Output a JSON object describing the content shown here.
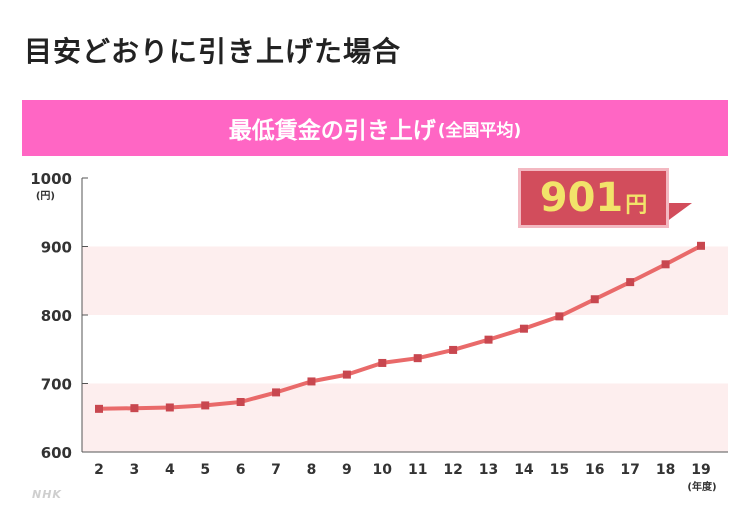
{
  "page": {
    "heading": "目安どおりに引き上げた場合"
  },
  "chart_data": {
    "type": "line",
    "title": "最低賃金の引き上げ",
    "subtitle": "(全国平均)",
    "x": [
      "2",
      "3",
      "4",
      "5",
      "6",
      "7",
      "8",
      "9",
      "10",
      "11",
      "12",
      "13",
      "14",
      "15",
      "16",
      "17",
      "18",
      "19"
    ],
    "xunit": "(年度)",
    "series": [
      {
        "values": [
          663,
          664,
          665,
          668,
          673,
          687,
          703,
          713,
          730,
          737,
          749,
          764,
          780,
          798,
          823,
          848,
          874,
          901
        ]
      }
    ],
    "ylim": [
      600,
      1000
    ],
    "yticks": [
      600,
      700,
      800,
      900,
      1000
    ],
    "ytick_labels": [
      "600",
      "700",
      "800",
      "900",
      "1000"
    ],
    "yunit": "(円)",
    "grid": false,
    "bands": [
      [
        600,
        700
      ],
      [
        800,
        900
      ]
    ],
    "annotation": {
      "value": "901",
      "unit": "円"
    },
    "colors": {
      "line": "#e96a6a",
      "marker": "#c8474f",
      "band": "#fdeeee",
      "banner": "#ff66c4",
      "callout": "#d24d5c",
      "callout_text": "#f2e36a"
    }
  },
  "watermark": "NHK"
}
